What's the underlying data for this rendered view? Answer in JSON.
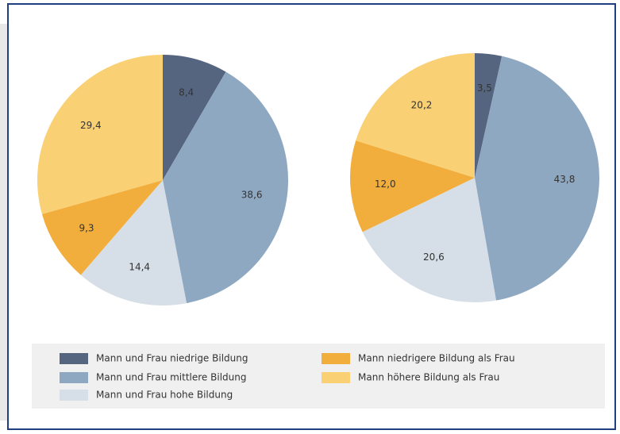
{
  "legend": {
    "items": [
      {
        "name": "Mann und Frau niedrige Bildung",
        "color": "#56657f"
      },
      {
        "name": "Mann und Frau mittlere Bildung",
        "color": "#8fa8c2"
      },
      {
        "name": "Mann und Frau hohe Bildung",
        "color": "#d6dee7"
      },
      {
        "name": "Mann niedrigere Bildung als Frau",
        "color": "#f2ae3c"
      },
      {
        "name": "Mann höhere Bildung als Frau",
        "color": "#f9d073"
      }
    ]
  },
  "chart_data": [
    {
      "type": "pie",
      "values": [
        8.4,
        38.6,
        14.4,
        9.3,
        29.4
      ],
      "value_labels": [
        "8,4",
        "38,6",
        "14,4",
        "9,3",
        "29,4"
      ]
    },
    {
      "type": "pie",
      "values": [
        3.5,
        43.8,
        20.6,
        12.0,
        20.2
      ],
      "value_labels": [
        "3,5",
        "43,8",
        "20,6",
        "12,0",
        "20,2"
      ]
    }
  ]
}
